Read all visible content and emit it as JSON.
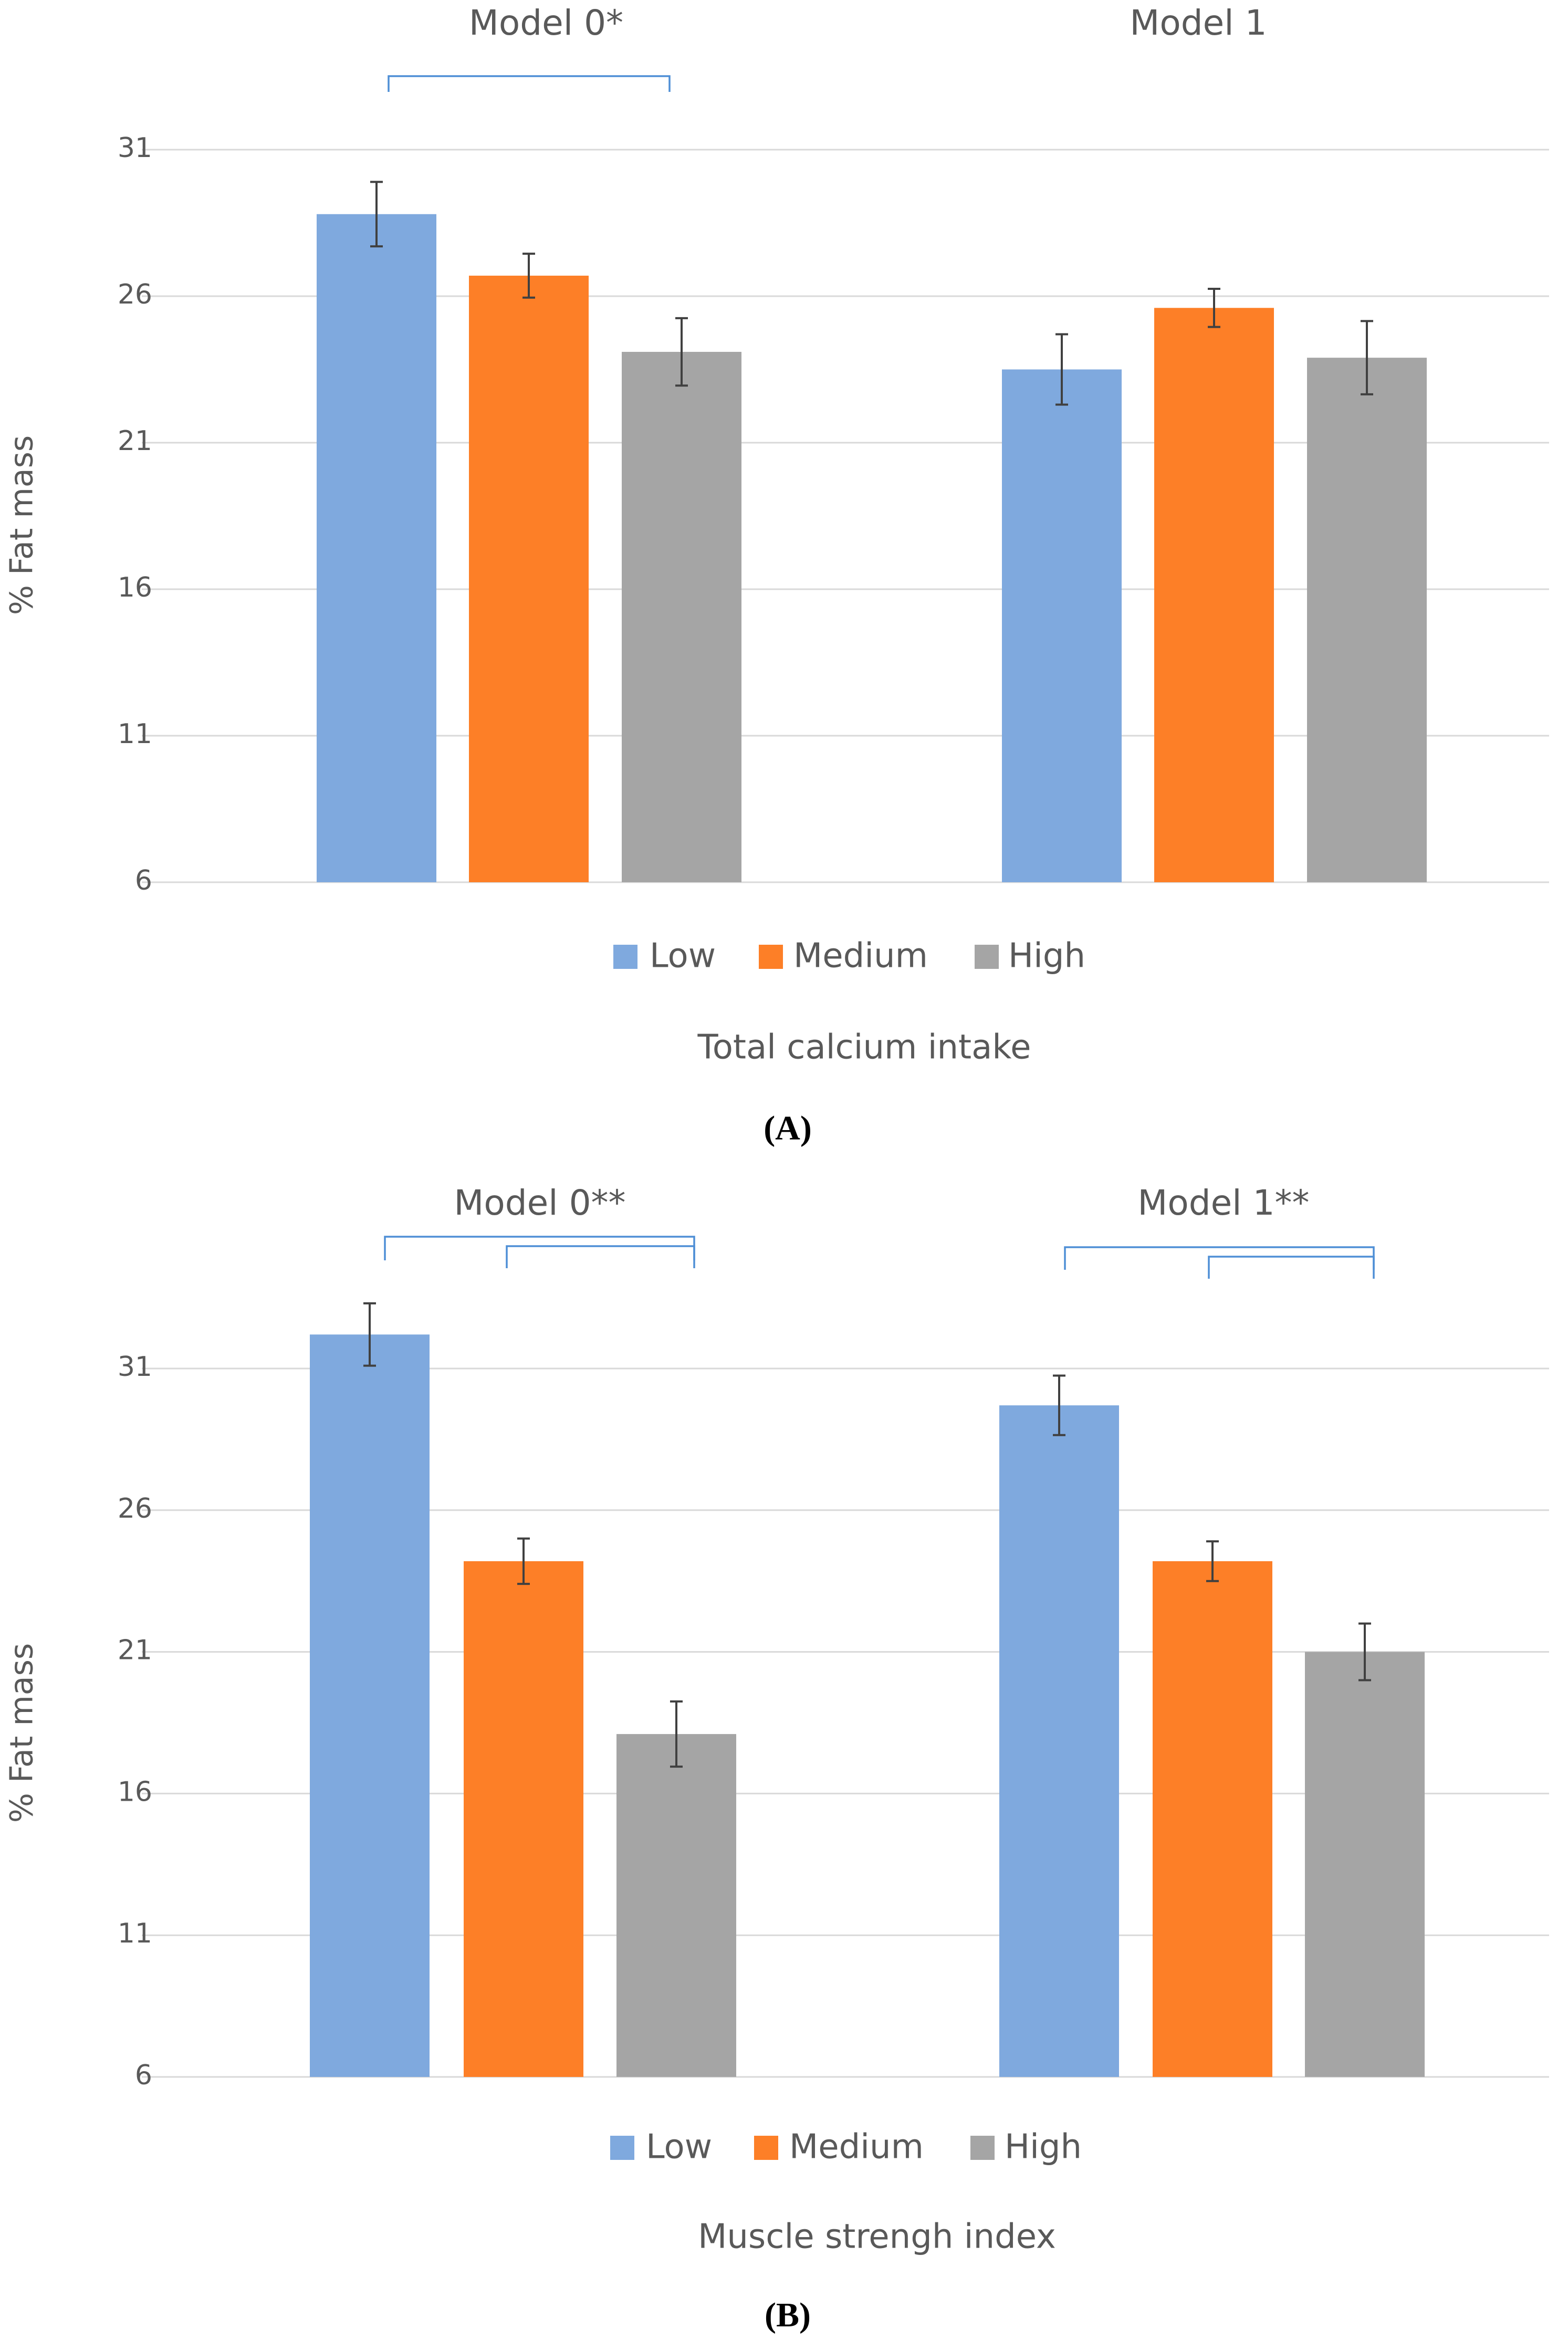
{
  "colors": {
    "low": "#7fa9de",
    "medium": "#fd7f27",
    "high": "#a5a5a5",
    "grid": "#d9d9d9",
    "text": "#595959",
    "bracket": "#4f8fd6",
    "errorbar": "#404040"
  },
  "chart_data": [
    {
      "type": "bar",
      "panel_label": "(A)",
      "xlabel": "Total calcium intake",
      "ylabel": "% Fat mass",
      "ylim": [
        6,
        31
      ],
      "yticks": [
        "6",
        "11",
        "16",
        "21",
        "26",
        "31"
      ],
      "grid": true,
      "legend_position": "bottom",
      "legend": [
        "Low",
        "Medium",
        "High"
      ],
      "categories": [
        "Model 0*",
        "Model 1"
      ],
      "series": [
        {
          "name": "Low",
          "values": [
            28.8,
            23.5
          ],
          "errors": [
            1.1,
            1.2
          ]
        },
        {
          "name": "Medium",
          "values": [
            26.7,
            25.6
          ],
          "errors": [
            0.75,
            0.65
          ]
        },
        {
          "name": "High",
          "values": [
            24.1,
            23.9
          ],
          "errors": [
            1.15,
            1.25
          ]
        }
      ]
    },
    {
      "type": "bar",
      "panel_label": "(B)",
      "xlabel": "Muscle strengh index",
      "ylabel": "% Fat mass",
      "ylim": [
        6,
        31
      ],
      "yticks": [
        "6",
        "11",
        "16",
        "21",
        "26",
        "31"
      ],
      "grid": true,
      "legend_position": "bottom",
      "legend": [
        "Low",
        "Medium",
        "High"
      ],
      "categories": [
        "Model 0**",
        "Model 1**"
      ],
      "series": [
        {
          "name": "Low",
          "values": [
            32.2,
            29.7
          ],
          "errors": [
            1.1,
            1.05
          ]
        },
        {
          "name": "Medium",
          "values": [
            24.2,
            24.2
          ],
          "errors": [
            0.8,
            0.7
          ]
        },
        {
          "name": "High",
          "values": [
            18.1,
            21.0
          ],
          "errors": [
            1.15,
            1.0
          ]
        }
      ]
    }
  ]
}
